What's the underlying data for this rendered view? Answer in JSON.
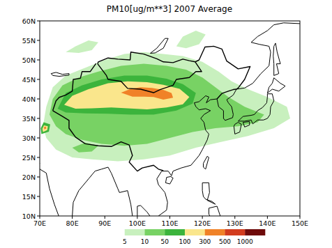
{
  "chart_data": {
    "type": "contour_map",
    "title": "PM10[ug/m**3] 2007 Average",
    "xlim": [
      70,
      150
    ],
    "ylim": [
      10,
      60
    ],
    "xticks": [
      {
        "value": 70,
        "label": "70E"
      },
      {
        "value": 80,
        "label": "80E"
      },
      {
        "value": 90,
        "label": "90E"
      },
      {
        "value": 100,
        "label": "100E"
      },
      {
        "value": 110,
        "label": "110E"
      },
      {
        "value": 120,
        "label": "120E"
      },
      {
        "value": 130,
        "label": "130E"
      },
      {
        "value": 140,
        "label": "140E"
      },
      {
        "value": 150,
        "label": "150E"
      }
    ],
    "yticks": [
      {
        "value": 10,
        "label": "10N"
      },
      {
        "value": 15,
        "label": "15N"
      },
      {
        "value": 20,
        "label": "20N"
      },
      {
        "value": 25,
        "label": "25N"
      },
      {
        "value": 30,
        "label": "30N"
      },
      {
        "value": 35,
        "label": "35N"
      },
      {
        "value": 40,
        "label": "40N"
      },
      {
        "value": 45,
        "label": "45N"
      },
      {
        "value": 50,
        "label": "50N"
      },
      {
        "value": 55,
        "label": "55N"
      },
      {
        "value": 60,
        "label": "60N"
      }
    ],
    "levels": [
      5,
      10,
      50,
      100,
      300,
      500,
      1000
    ],
    "colors": [
      "#ffffff",
      "#c8f0be",
      "#78d264",
      "#3cb43c",
      "#fae68c",
      "#f08228",
      "#d23c1e",
      "#6e0a0a"
    ],
    "contours": [
      {
        "level": 5,
        "polygons": [
          [
            [
              71,
              33
            ],
            [
              72,
              38
            ],
            [
              74,
              43
            ],
            [
              78,
              46
            ],
            [
              84,
              48
            ],
            [
              90,
              50
            ],
            [
              96,
              51.5
            ],
            [
              102,
              52
            ],
            [
              108,
              51.5
            ],
            [
              114,
              51
            ],
            [
              120,
              49.5
            ],
            [
              125,
              47
            ],
            [
              129,
              44.5
            ],
            [
              134,
              42.5
            ],
            [
              140,
              40.5
            ],
            [
              146,
              38
            ],
            [
              147,
              35
            ],
            [
              142,
              32.5
            ],
            [
              134,
              30.5
            ],
            [
              126,
              29
            ],
            [
              118,
              27.5
            ],
            [
              110,
              25.5
            ],
            [
              102,
              24.5
            ],
            [
              94,
              24
            ],
            [
              86,
              24.5
            ],
            [
              80,
              25
            ],
            [
              75,
              27
            ],
            [
              72,
              30
            ]
          ],
          [
            [
              78,
              52
            ],
            [
              81,
              53.5
            ],
            [
              85,
              55
            ],
            [
              88,
              54.5
            ],
            [
              86,
              52.5
            ],
            [
              82,
              51.8
            ]
          ],
          [
            [
              112,
              53.5
            ],
            [
              114,
              56
            ],
            [
              118,
              57.5
            ],
            [
              121,
              56.5
            ],
            [
              119,
              54
            ],
            [
              115,
              53
            ]
          ]
        ]
      },
      {
        "level": 10,
        "polygons": [
          [
            [
              73,
              36
            ],
            [
              74,
              40
            ],
            [
              77,
              43.5
            ],
            [
              82,
              45.5
            ],
            [
              88,
              47
            ],
            [
              95,
              48.5
            ],
            [
              102,
              49
            ],
            [
              109,
              48.5
            ],
            [
              115,
              47.5
            ],
            [
              120,
              45.5
            ],
            [
              124,
              43
            ],
            [
              128,
              40.5
            ],
            [
              133,
              38
            ],
            [
              139,
              36
            ],
            [
              137,
              34
            ],
            [
              131,
              33
            ],
            [
              124,
              32.5
            ],
            [
              117,
              31.5
            ],
            [
              110,
              30
            ],
            [
              103,
              28.5
            ],
            [
              96,
              28
            ],
            [
              89,
              28.5
            ],
            [
              83,
              29.5
            ],
            [
              78,
              31
            ],
            [
              75,
              33
            ]
          ],
          [
            [
              80,
              27.5
            ],
            [
              84,
              28.8
            ],
            [
              88,
              28
            ],
            [
              86,
              26.5
            ],
            [
              82,
              26.3
            ]
          ]
        ]
      },
      {
        "level": 50,
        "polygons": [
          [
            [
              75.5,
              37.5
            ],
            [
              78,
              41.5
            ],
            [
              83,
              43.5
            ],
            [
              89,
              45
            ],
            [
              96,
              46
            ],
            [
              103,
              46
            ],
            [
              109,
              45.2
            ],
            [
              114,
              43.8
            ],
            [
              118,
              41.5
            ],
            [
              117,
              38.8
            ],
            [
              112,
              37
            ],
            [
              105,
              36
            ],
            [
              98,
              36
            ],
            [
              91,
              36.2
            ],
            [
              84,
              36.3
            ],
            [
              78,
              36.5
            ]
          ],
          [
            [
              70.5,
              31
            ],
            [
              72.8,
              31.6
            ],
            [
              73.2,
              33.5
            ],
            [
              71.2,
              34
            ],
            [
              70.3,
              32.5
            ]
          ]
        ]
      },
      {
        "level": 100,
        "polygons": [
          [
            [
              77.5,
              38.5
            ],
            [
              80,
              40.8
            ],
            [
              85,
              42.5
            ],
            [
              91,
              44
            ],
            [
              97,
              44.5
            ],
            [
              103,
              44.3
            ],
            [
              108,
              43.6
            ],
            [
              113,
              42.6
            ],
            [
              116,
              40.5
            ],
            [
              114,
              38.6
            ],
            [
              109,
              37.8
            ],
            [
              103,
              37.3
            ],
            [
              97,
              37.6
            ],
            [
              92,
              37.8
            ],
            [
              86,
              37.6
            ],
            [
              81,
              37.5
            ]
          ],
          [
            [
              71,
              31.5
            ],
            [
              72.3,
              32
            ],
            [
              72.5,
              33
            ],
            [
              71.3,
              33.2
            ],
            [
              70.8,
              32.3
            ]
          ]
        ]
      },
      {
        "level": 300,
        "polygons": [
          [
            [
              95,
              41.6
            ],
            [
              98,
              42.6
            ],
            [
              101,
              43
            ],
            [
              104.5,
              42.8
            ],
            [
              108,
              42.3
            ],
            [
              110.5,
              41.5
            ],
            [
              111,
              40.3
            ],
            [
              108,
              39.8
            ],
            [
              105,
              40.5
            ],
            [
              102,
              40.6
            ],
            [
              98.5,
              40.6
            ]
          ],
          [
            [
              71.4,
              32.2
            ],
            [
              72,
              32.4
            ],
            [
              71.9,
              32.9
            ],
            [
              71.3,
              32.8
            ]
          ]
        ]
      }
    ]
  }
}
